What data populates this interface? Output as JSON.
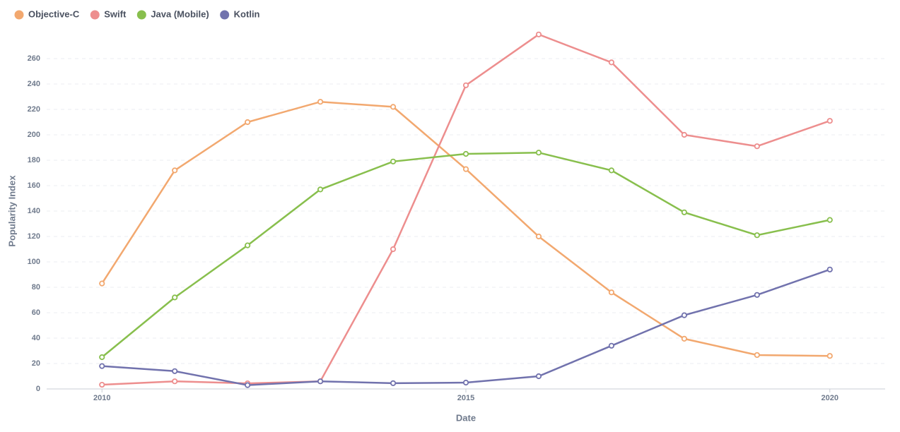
{
  "chart_data": {
    "type": "line",
    "x_label": "Date",
    "y_label": "Popularity Index",
    "x": [
      2010,
      2011,
      2012,
      2013,
      2014,
      2015,
      2016,
      2017,
      2018,
      2019,
      2020
    ],
    "series": [
      {
        "name": "Objective-C",
        "color": "#f2a86f",
        "values": [
          83,
          172,
          210,
          226,
          222,
          173,
          120,
          76,
          39.5,
          26.7,
          26
        ]
      },
      {
        "name": "Swift",
        "color": "#ed8e8e",
        "values": [
          3.3,
          6,
          4.4,
          6,
          110,
          239,
          279,
          257,
          200,
          191,
          211
        ]
      },
      {
        "name": "Java (Mobile)",
        "color": "#88bf4d",
        "values": [
          25,
          72,
          113,
          157,
          179,
          185,
          186,
          172,
          139,
          121,
          133
        ]
      },
      {
        "name": "Kotlin",
        "color": "#7172ad",
        "values": [
          18,
          14,
          3,
          6,
          4.5,
          5,
          10,
          34,
          58,
          74,
          94
        ]
      }
    ],
    "xlim": [
      2009.24,
      2020.76
    ],
    "xticks": [
      2010,
      2015,
      2020
    ],
    "ylim": [
      0,
      280
    ],
    "yticks": [
      0,
      20,
      40,
      60,
      80,
      100,
      120,
      140,
      160,
      180,
      200,
      220,
      240,
      260
    ],
    "grid": true,
    "legend": "top-left"
  }
}
